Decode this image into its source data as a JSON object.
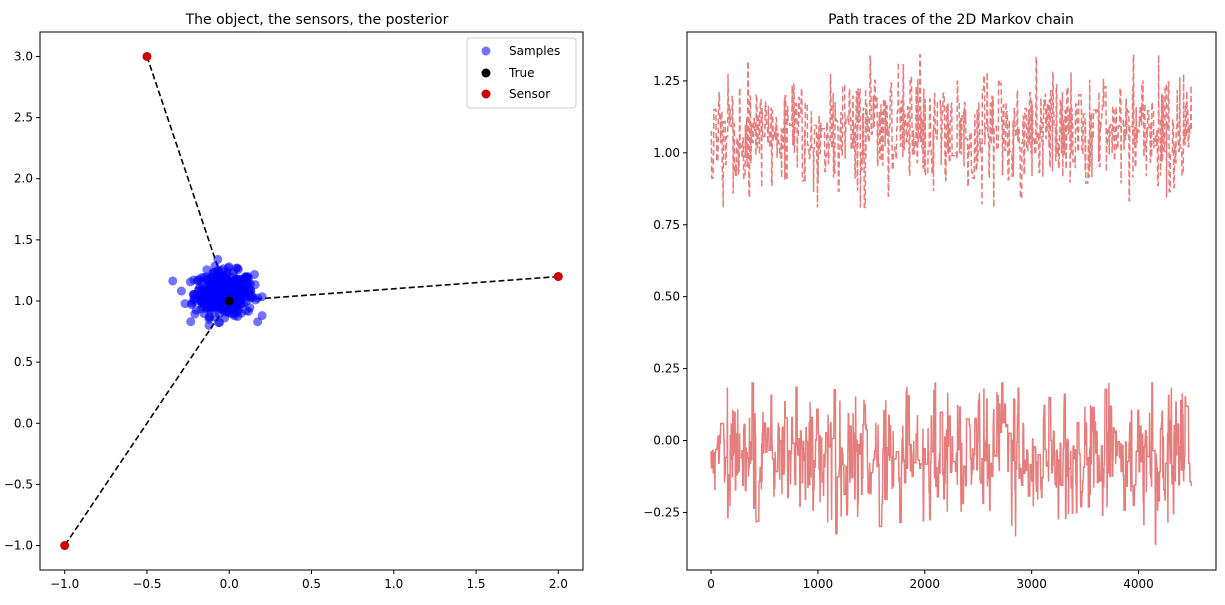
{
  "chart_data": [
    {
      "type": "scatter",
      "title": "The object, the sensors, the posterior",
      "xlabel": "",
      "ylabel": "",
      "xlim": [
        -1.15,
        2.15
      ],
      "ylim": [
        -1.2,
        3.2
      ],
      "xticks": [
        -1.0,
        -0.5,
        0.0,
        0.5,
        1.0,
        1.5,
        2.0
      ],
      "xtick_labels": [
        "−1.0",
        "−0.5",
        "0.0",
        "0.5",
        "1.0",
        "1.5",
        "2.0"
      ],
      "yticks": [
        -1.0,
        -0.5,
        0.0,
        0.5,
        1.0,
        1.5,
        2.0,
        2.5,
        3.0
      ],
      "ytick_labels": [
        "−1.0",
        "−0.5",
        "0.0",
        "0.5",
        "1.0",
        "1.5",
        "2.0",
        "2.5",
        "3.0"
      ],
      "grid": false,
      "legend_position": "top-right",
      "series": [
        {
          "name": "Samples",
          "color": "#0000ff",
          "alpha": 0.55,
          "cloud": {
            "n": 450,
            "center": [
              -0.03,
              1.06
            ],
            "sd": [
              0.09,
              0.09
            ],
            "x_range": [
              -0.35,
              0.2
            ],
            "y_range": [
              0.8,
              1.34
            ]
          }
        },
        {
          "name": "True",
          "color": "#000000",
          "points": [
            [
              0.0,
              1.0
            ]
          ]
        },
        {
          "name": "Sensor",
          "color": "#cc0000",
          "points": [
            [
              -0.5,
              3.0
            ],
            [
              2.0,
              1.2
            ],
            [
              -1.0,
              -1.0
            ]
          ]
        }
      ],
      "lines": [
        {
          "from": [
            0.0,
            1.0
          ],
          "to": [
            -0.5,
            3.0
          ],
          "style": "dashed",
          "color": "#000000"
        },
        {
          "from": [
            0.0,
            1.0
          ],
          "to": [
            2.0,
            1.2
          ],
          "style": "dashed",
          "color": "#000000"
        },
        {
          "from": [
            0.0,
            1.0
          ],
          "to": [
            -1.0,
            -1.0
          ],
          "style": "dashed",
          "color": "#000000"
        }
      ]
    },
    {
      "type": "line",
      "title": "Path traces of the 2D Markov chain",
      "xlabel": "",
      "ylabel": "",
      "xlim": [
        -225,
        4725
      ],
      "ylim": [
        -0.45,
        1.42
      ],
      "xticks": [
        0,
        1000,
        2000,
        3000,
        4000
      ],
      "xtick_labels": [
        "0",
        "1000",
        "2000",
        "3000",
        "4000"
      ],
      "yticks": [
        -0.25,
        0.0,
        0.25,
        0.5,
        0.75,
        1.0,
        1.25
      ],
      "ytick_labels": [
        "−0.25",
        "0.00",
        "0.25",
        "0.50",
        "0.75",
        "1.00",
        "1.25"
      ],
      "grid": false,
      "series": [
        {
          "color": "#e06666",
          "style": "solid",
          "n": 4500,
          "mean": -0.06,
          "range": [
            -0.36,
            0.2
          ]
        },
        {
          "color": "#e06666",
          "style": "dashed",
          "n": 4500,
          "mean": 1.07,
          "range": [
            0.81,
            1.34
          ]
        }
      ]
    }
  ]
}
